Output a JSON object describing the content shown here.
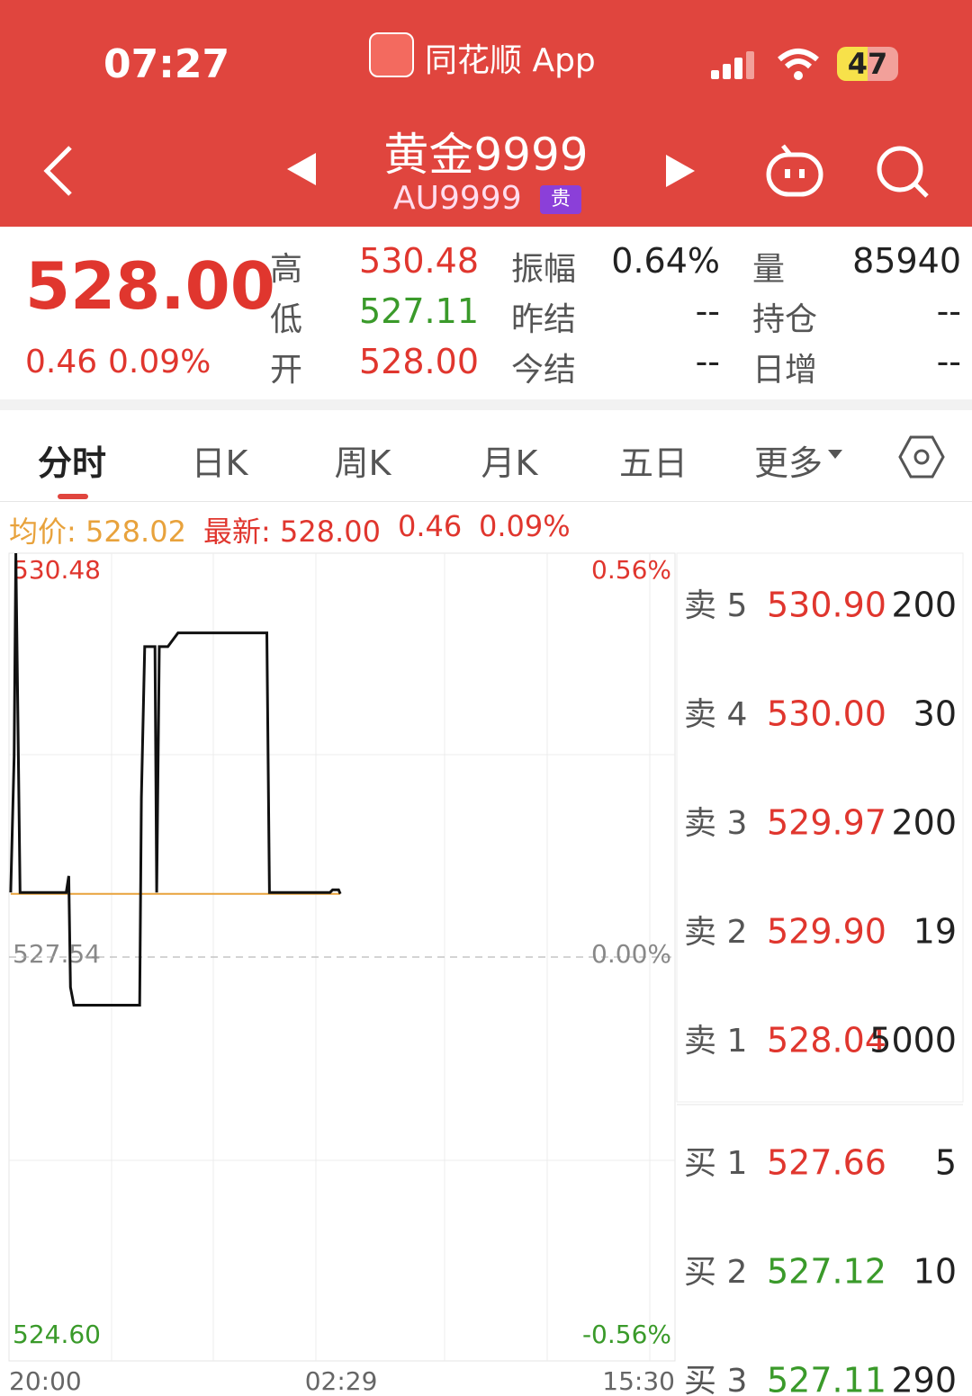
{
  "status_bar": {
    "time": "07:27",
    "app": "同花顺 App",
    "battery": "47"
  },
  "header": {
    "title": "黄金9999",
    "code": "AU9999",
    "badge": "贵"
  },
  "quote": {
    "price": "528.00",
    "change": "0.46",
    "change_pct": "0.09%",
    "stats": [
      {
        "label": "高",
        "value": "530.48",
        "color": "#e0362e"
      },
      {
        "label": "低",
        "value": "527.11",
        "color": "#3a9a2a"
      },
      {
        "label": "开",
        "value": "528.00",
        "color": "#e0362e"
      },
      {
        "label": "振幅",
        "value": "0.64%",
        "color": "#222222"
      },
      {
        "label": "昨结",
        "value": "--",
        "color": "#222222"
      },
      {
        "label": "今结",
        "value": "--",
        "color": "#222222"
      },
      {
        "label": "量",
        "value": "85940",
        "color": "#222222"
      },
      {
        "label": "持仓",
        "value": "--",
        "color": "#222222"
      },
      {
        "label": "日增",
        "value": "--",
        "color": "#222222"
      }
    ]
  },
  "tabs": [
    "分时",
    "日K",
    "周K",
    "月K",
    "五日",
    "更多"
  ],
  "info": {
    "avg": "均价: 528.02",
    "latest": "最新: 528.00",
    "change": "0.46",
    "pct": "0.09%"
  },
  "chart": {
    "type": "line",
    "xlim": [
      0,
      780
    ],
    "xticks": [
      {
        "value": 0,
        "label": "20:00"
      },
      {
        "value": 389,
        "label": "02:29"
      },
      {
        "value": 780,
        "label": "15:30"
      }
    ],
    "ylim": [
      524.6,
      530.48
    ],
    "yticks": [
      {
        "value": 530.48,
        "label": "530.48"
      },
      {
        "value": 527.54,
        "label": "527.54"
      },
      {
        "value": 524.6,
        "label": "524.60"
      }
    ],
    "y2lim": [
      -0.56,
      0.56
    ],
    "y2ticks": [
      {
        "value": 0.56,
        "label": "0.56%"
      },
      {
        "value": 0,
        "label": "0.00%"
      },
      {
        "value": -0.56,
        "label": "-0.56%"
      }
    ],
    "series": [
      {
        "color": "#111111",
        "x": [
          2,
          6,
          8,
          13,
          67,
          70,
          72,
          76,
          153,
          155,
          159,
          171,
          173,
          176,
          186,
          198,
          302,
          305,
          376,
          379,
          386,
          388
        ],
        "values": [
          528.01,
          529.0,
          530.48,
          528.01,
          528.01,
          528.13,
          527.32,
          527.19,
          527.19,
          528.7,
          529.8,
          529.8,
          528.01,
          529.8,
          529.8,
          529.9,
          529.9,
          528.01,
          528.01,
          528.03,
          528.03,
          528.0
        ]
      },
      {
        "color": "#e8a23c",
        "x": [
          2,
          388
        ],
        "values": [
          528.0,
          528.0
        ]
      }
    ]
  },
  "order_book": [
    {
      "label": "卖 5",
      "price": "530.90",
      "volume": 200,
      "color": "#e0362e"
    },
    {
      "label": "卖 4",
      "price": "530.00",
      "volume": 30,
      "color": "#e0362e"
    },
    {
      "label": "卖 3",
      "price": "529.97",
      "volume": 200,
      "color": "#e0362e"
    },
    {
      "label": "卖 2",
      "price": "529.90",
      "volume": 19,
      "color": "#e0362e"
    },
    {
      "label": "卖 1",
      "price": "528.04",
      "volume": 5000,
      "color": "#e0362e"
    },
    {
      "label": "买 1",
      "price": "527.66",
      "volume": 5,
      "color": "#e0362e"
    },
    {
      "label": "买 2",
      "price": "527.12",
      "volume": 10,
      "color": "#3a9a2a"
    },
    {
      "label": "买 3",
      "price": "527.11",
      "volume": 290,
      "color": "#3a9a2a"
    }
  ]
}
